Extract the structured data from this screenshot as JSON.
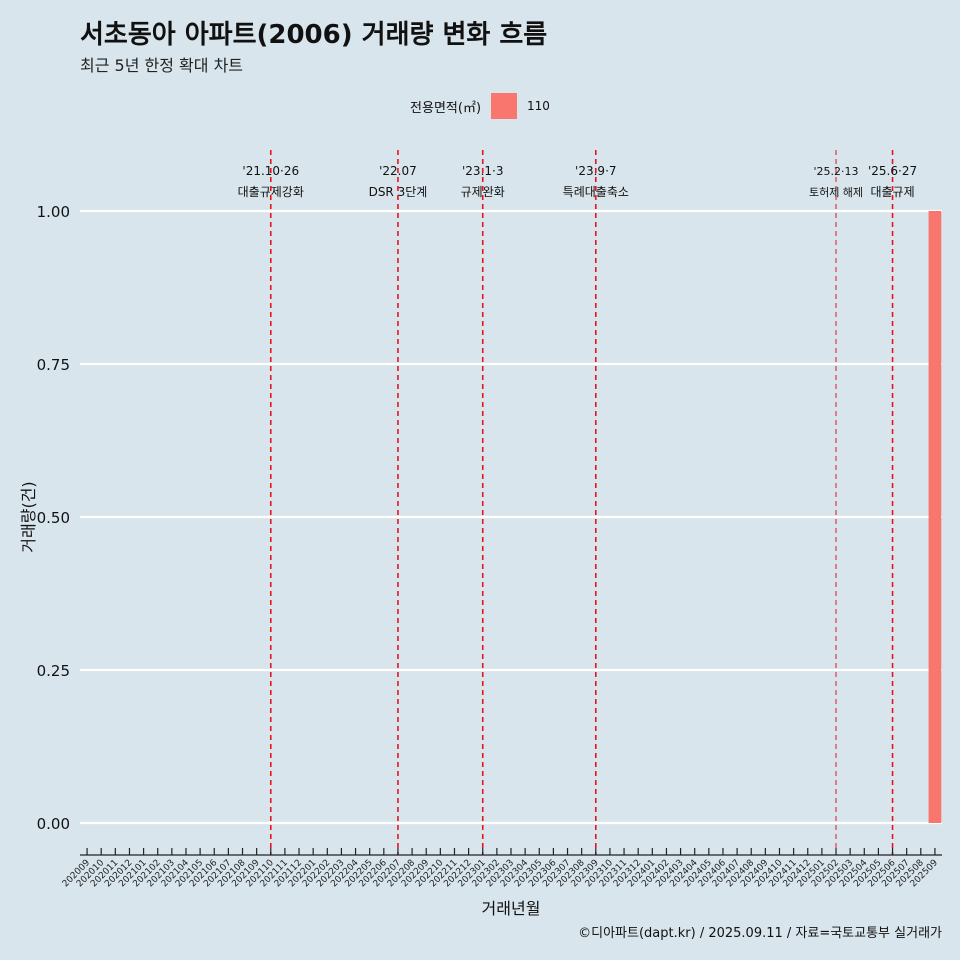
{
  "title": "서초동아 아파트(2006) 거래량 변화 흐름",
  "subtitle": "최근 5년 한정 확대 차트",
  "legend": {
    "title": "전용면적(㎡)",
    "label": "110",
    "color": "#f8766d"
  },
  "footer": "©디아파트(dapt.kr) / 2025.09.11 / 자료=국토교통부 실거래가",
  "chart_data": {
    "type": "bar",
    "title": "서초동아 아파트(2006) 거래량 변화 흐름",
    "xlabel": "거래년월",
    "ylabel": "거래량(건)",
    "ylim": [
      0,
      1
    ],
    "yticks": [
      "0.00",
      "0.25",
      "0.50",
      "0.75",
      "1.00"
    ],
    "categories": [
      "202009",
      "202010",
      "202011",
      "202012",
      "202101",
      "202102",
      "202103",
      "202104",
      "202105",
      "202106",
      "202107",
      "202108",
      "202109",
      "202110",
      "202111",
      "202112",
      "202201",
      "202202",
      "202203",
      "202204",
      "202205",
      "202206",
      "202207",
      "202208",
      "202209",
      "202210",
      "202211",
      "202212",
      "202301",
      "202302",
      "202303",
      "202304",
      "202305",
      "202306",
      "202307",
      "202308",
      "202309",
      "202310",
      "202311",
      "202312",
      "202401",
      "202402",
      "202403",
      "202404",
      "202405",
      "202406",
      "202407",
      "202408",
      "202409",
      "202410",
      "202411",
      "202412",
      "202501",
      "202502",
      "202503",
      "202504",
      "202505",
      "202506",
      "202507",
      "202508",
      "202509"
    ],
    "series": [
      {
        "name": "110",
        "color": "#f8766d",
        "values": [
          0,
          0,
          0,
          0,
          0,
          0,
          0,
          0,
          0,
          0,
          0,
          0,
          0,
          0,
          0,
          0,
          0,
          0,
          0,
          0,
          0,
          0,
          0,
          0,
          0,
          0,
          0,
          0,
          0,
          0,
          0,
          0,
          0,
          0,
          0,
          0,
          0,
          0,
          0,
          0,
          0,
          0,
          0,
          0,
          0,
          0,
          0,
          0,
          0,
          0,
          0,
          0,
          0,
          0,
          0,
          0,
          0,
          0,
          0,
          0,
          1
        ]
      }
    ],
    "events": [
      {
        "month": "202110",
        "date": "'21.10·26",
        "label": "대출규제강화",
        "thin": false
      },
      {
        "month": "202207",
        "date": "'22.07",
        "label": "DSR 3단계",
        "thin": false
      },
      {
        "month": "202301",
        "date": "'23.1·3",
        "label": "규제완화",
        "thin": false
      },
      {
        "month": "202309",
        "date": "'23.9·7",
        "label": "특례대출축소",
        "thin": false
      },
      {
        "month": "202502",
        "date": "'25.2·13",
        "label": "토허제 해제",
        "thin": true
      },
      {
        "month": "202506",
        "date": "'25.6·27",
        "label": "대출규제",
        "thin": false
      }
    ]
  }
}
